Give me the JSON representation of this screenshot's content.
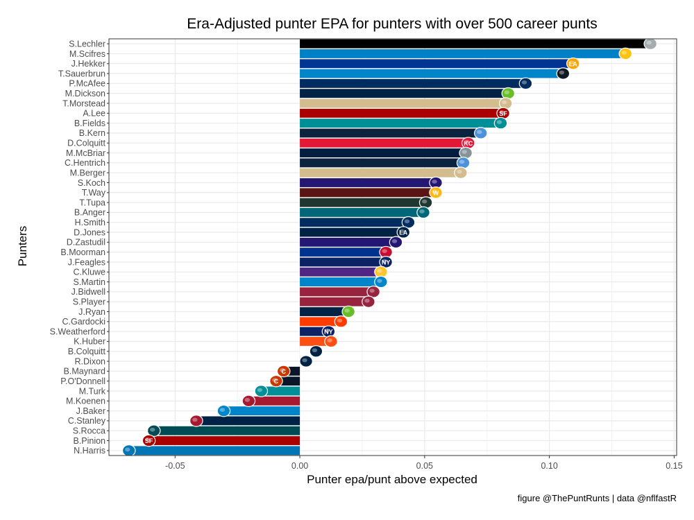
{
  "chart_data": {
    "type": "bar",
    "orientation": "horizontal",
    "title": "Era-Adjusted punter EPA for punters with over 500 career punts",
    "xlabel": "Punter epa/punt above expected",
    "ylabel": "Punters",
    "caption": "figure @ThePuntRunts | data @nflfastR",
    "xlim": [
      -0.0765,
      0.151
    ],
    "x_ticks": [
      -0.05,
      0.0,
      0.05,
      0.1,
      0.15
    ],
    "x_tick_labels": [
      "-0.05",
      "0.00",
      "0.05",
      "0.10",
      "0.15"
    ],
    "grid": true,
    "categories": [
      "S.Lechler",
      "M.Scifres",
      "J.Hekker",
      "T.Sauerbrun",
      "P.McAfee",
      "M.Dickson",
      "T.Morstead",
      "A.Lee",
      "B.Fields",
      "B.Kern",
      "D.Colquitt",
      "M.McBriar",
      "C.Hentrich",
      "M.Berger",
      "S.Koch",
      "T.Way",
      "T.Tupa",
      "B.Anger",
      "H.Smith",
      "D.Jones",
      "D.Zastudil",
      "B.Moorman",
      "J.Feagles",
      "C.Kluwe",
      "S.Martin",
      "J.Bidwell",
      "S.Player",
      "J.Ryan",
      "C.Gardocki",
      "S.Weatherford",
      "K.Huber",
      "B.Colquitt",
      "R.Dixon",
      "B.Maynard",
      "P.O'Donnell",
      "M.Turk",
      "M.Koenen",
      "J.Baker",
      "C.Stanley",
      "S.Rocca",
      "B.Pinion",
      "N.Harris"
    ],
    "values": [
      0.1405,
      0.1305,
      0.1095,
      0.1055,
      0.0905,
      0.0835,
      0.0825,
      0.0815,
      0.0805,
      0.0725,
      0.0675,
      0.0665,
      0.0655,
      0.0645,
      0.0545,
      0.0545,
      0.0505,
      0.0495,
      0.0435,
      0.0415,
      0.0385,
      0.0345,
      0.0345,
      0.0325,
      0.0325,
      0.0295,
      0.0275,
      0.0195,
      0.0165,
      0.0115,
      0.0125,
      0.0065,
      0.0025,
      -0.0065,
      -0.0095,
      -0.0155,
      -0.0205,
      -0.0305,
      -0.0415,
      -0.0585,
      -0.0605,
      -0.0685
    ],
    "colors": [
      "#000000",
      "#0080C6",
      "#003594",
      "#0085CA",
      "#002C5F",
      "#002244",
      "#D3BC8D",
      "#AA0000",
      "#008E97",
      "#0C2340",
      "#E31837",
      "#041E42",
      "#0C2340",
      "#D3BC8D",
      "#241773",
      "#5A1414",
      "#203731",
      "#006778",
      "#002C5F",
      "#002244",
      "#241773",
      "#00338D",
      "#0B2265",
      "#4F2683",
      "#0085CA",
      "#97233F",
      "#97233F",
      "#002244",
      "#FF3C00",
      "#0B2265",
      "#FB4F14",
      "#FFFFFF",
      "#FFFFFF",
      "#0B162A",
      "#0B162A",
      "#008E97",
      "#A71930",
      "#0085CA",
      "#002244",
      "#004C54",
      "#AA0000",
      "#0076B6"
    ],
    "logo_colors": [
      "#A5ACAF",
      "#FFC20E",
      "#FFA300",
      "#101820",
      "#002C5F",
      "#69BE28",
      "#D3BC8D",
      "#AA0000",
      "#008E97",
      "#4B92DB",
      "#E31837",
      "#869397",
      "#4B92DB",
      "#D3BC8D",
      "#241773",
      "#FFB612",
      "#203731",
      "#006778",
      "#002C5F",
      "#002244",
      "#241773",
      "#C60C30",
      "#0B2265",
      "#FFC62F",
      "#0085CA",
      "#97233F",
      "#97233F",
      "#69BE28",
      "#FF3C00",
      "#0B2265",
      "#FB4F14",
      "#002244",
      "#002244",
      "#C83803",
      "#C83803",
      "#008E97",
      "#A71930",
      "#0085CA",
      "#A71930",
      "#004C54",
      "#AA0000",
      "#0076B6"
    ],
    "icons": [
      "raiders-logo-icon",
      "chargers-logo-icon",
      "rams-logo-icon",
      "panthers-logo-icon",
      "colts-logo-icon",
      "seahawks-logo-icon",
      "saints-logo-icon",
      "49ers-logo-icon",
      "dolphins-logo-icon",
      "titans-logo-icon",
      "chiefs-logo-icon",
      "cowboys-logo-icon",
      "titans-logo-icon",
      "saints-logo-icon",
      "ravens-logo-icon",
      "commanders-logo-icon",
      "jets-logo-icon",
      "jaguars-logo-icon",
      "colts-logo-icon",
      "rams-logo-icon",
      "ravens-logo-icon",
      "bills-logo-icon",
      "giants-logo-icon",
      "vikings-logo-icon",
      "panthers-logo-icon",
      "cardinals-logo-icon",
      "cardinals-logo-icon",
      "seahawks-logo-icon",
      "browns-logo-icon",
      "giants-logo-icon",
      "bengals-logo-icon",
      "eagles-logo-icon",
      "eagles-logo-icon",
      "bears-logo-icon",
      "bears-logo-icon",
      "dolphins-logo-icon",
      "falcons-logo-icon",
      "panthers-logo-icon",
      "texans-logo-icon",
      "eagles-logo-icon",
      "49ers-logo-icon",
      "lions-logo-icon"
    ],
    "logo_text": [
      "",
      "",
      "LA",
      "",
      "",
      "",
      "",
      "SF",
      "",
      "",
      "KC",
      "",
      "",
      "",
      "",
      "W",
      "",
      "",
      "",
      "LA",
      "",
      "",
      "NY",
      "",
      "",
      "",
      "",
      "",
      "",
      "NY",
      "",
      "",
      "",
      "C",
      "C",
      "",
      "",
      "",
      "",
      "",
      "SF",
      ""
    ]
  }
}
